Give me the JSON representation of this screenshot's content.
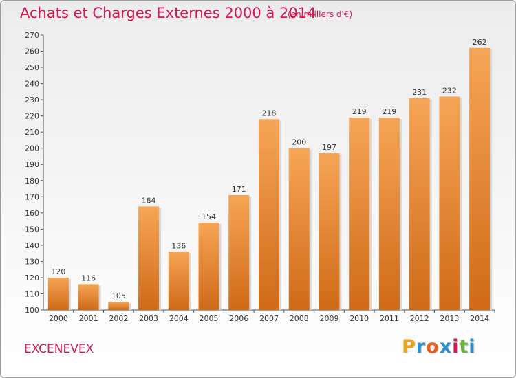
{
  "header": {
    "title": "Achats et Charges Externes 2000 à 2014",
    "subtitle": "(en milliers d'€)"
  },
  "footer": {
    "town": "EXCENEVEX",
    "brand_letters": [
      "P",
      "r",
      "o",
      "x",
      "i",
      "t",
      "i"
    ],
    "brand_colors": [
      "#e8a21b",
      "#2c8fcb",
      "#e8601c",
      "#2c8fcb",
      "#d4174e",
      "#6bb33a",
      "#2c8fcb"
    ]
  },
  "colors": {
    "bar_light": "#f6a556",
    "bar_dark": "#cf6a17",
    "accent": "#d4174e"
  },
  "chart_data": {
    "type": "bar",
    "title": "Achats et Charges Externes 2000 à 2014",
    "subtitle": "(en milliers d'€)",
    "categories": [
      "2000",
      "2001",
      "2002",
      "2003",
      "2004",
      "2005",
      "2006",
      "2007",
      "2008",
      "2009",
      "2010",
      "2011",
      "2012",
      "2013",
      "2014"
    ],
    "values": [
      120,
      116,
      105,
      164,
      136,
      154,
      171,
      218,
      200,
      197,
      219,
      219,
      231,
      232,
      262
    ],
    "ylim": [
      100,
      270
    ],
    "yticks": [
      100,
      110,
      120,
      130,
      140,
      150,
      160,
      170,
      180,
      190,
      200,
      210,
      220,
      230,
      240,
      250,
      260,
      270
    ],
    "grid": false,
    "legend": "none"
  }
}
